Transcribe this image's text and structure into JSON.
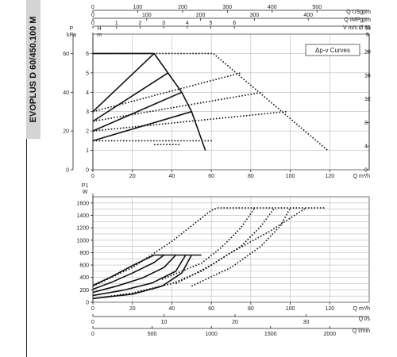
{
  "product": {
    "title": "EVOPLUS D 60/450.100 M"
  },
  "chart_data": [
    {
      "type": "line",
      "name": "head",
      "title": "",
      "legend_box": "Δp-v Curves",
      "xlabel": "Q m³/h",
      "xlim": [
        0,
        140
      ],
      "xticks": [
        0,
        20,
        40,
        60,
        80,
        100,
        120
      ],
      "left_axis": {
        "label": "H m",
        "ylim": [
          0,
          7
        ],
        "ticks": [
          0,
          1,
          2,
          3,
          4,
          5,
          6
        ]
      },
      "left_axis_kpa": {
        "label": "P kPa",
        "ticks": [
          0,
          20,
          40,
          60
        ]
      },
      "right_axis": {
        "label": "H ft",
        "ticks": [
          0,
          4,
          8,
          12,
          16,
          20
        ]
      },
      "top_axes": [
        {
          "label": "Q USgpm",
          "ticks": [
            0,
            100,
            200,
            300,
            400,
            500
          ]
        },
        {
          "label": "Q IMPgpm",
          "ticks": [
            0,
            100,
            200,
            300,
            400
          ]
        },
        {
          "label": "V m/s Ø 65",
          "ticks": [
            0,
            1,
            2,
            3,
            4,
            5,
            6
          ]
        }
      ],
      "series": [
        {
          "style": "solid",
          "x": [
            0,
            31
          ],
          "y": [
            3.0,
            6.0
          ]
        },
        {
          "style": "solid",
          "x": [
            0,
            38
          ],
          "y": [
            2.5,
            5.0
          ]
        },
        {
          "style": "solid",
          "x": [
            0,
            45
          ],
          "y": [
            2.0,
            4.0
          ]
        },
        {
          "style": "solid",
          "x": [
            0,
            50
          ],
          "y": [
            1.5,
            3.0
          ]
        },
        {
          "style": "solid",
          "x": [
            0,
            31,
            38,
            45,
            50,
            57
          ],
          "y": [
            6.0,
            6.0,
            5.0,
            4.0,
            3.0,
            1.0
          ]
        },
        {
          "style": "dotted",
          "x": [
            0,
            31,
            61,
            119
          ],
          "y": [
            6.0,
            6.0,
            6.0,
            1.0
          ]
        },
        {
          "style": "dotted",
          "x": [
            0,
            75
          ],
          "y": [
            3.0,
            5.0
          ]
        },
        {
          "style": "dotted",
          "x": [
            0,
            86
          ],
          "y": [
            2.5,
            4.0
          ]
        },
        {
          "style": "dotted",
          "x": [
            0,
            98
          ],
          "y": [
            2.0,
            3.0
          ]
        },
        {
          "style": "dotted",
          "x": [
            0,
            61
          ],
          "y": [
            1.5,
            1.5
          ]
        },
        {
          "style": "dotted",
          "x": [
            31,
            44
          ],
          "y": [
            1.3,
            1.3
          ]
        }
      ]
    },
    {
      "type": "line",
      "name": "power",
      "title": "",
      "ylabel": "P1 W",
      "ylim": [
        0,
        1700
      ],
      "yticks": [
        0,
        200,
        400,
        600,
        800,
        1000,
        1200,
        1400,
        1600
      ],
      "xlabel": "Q m³/h",
      "xlim": [
        0,
        140
      ],
      "xticks": [
        0,
        20,
        40,
        60,
        80,
        100,
        120
      ],
      "bottom_axes": [
        {
          "label": "Q l/s",
          "ticks": [
            0,
            10,
            20,
            30
          ]
        },
        {
          "label": "Q l/min",
          "ticks": [
            0,
            500,
            1000,
            1500,
            2000
          ]
        }
      ],
      "series": [
        {
          "style": "solid",
          "x": [
            0,
            10,
            20,
            31
          ],
          "y": [
            270,
            420,
            590,
            760
          ]
        },
        {
          "style": "solid",
          "x": [
            0,
            10,
            20,
            31,
            36
          ],
          "y": [
            210,
            330,
            470,
            640,
            760
          ]
        },
        {
          "style": "solid",
          "x": [
            0,
            12,
            25,
            36,
            42
          ],
          "y": [
            160,
            260,
            390,
            560,
            760
          ]
        },
        {
          "style": "solid",
          "x": [
            0,
            15,
            30,
            42,
            47
          ],
          "y": [
            110,
            190,
            310,
            500,
            760
          ]
        },
        {
          "style": "solid",
          "x": [
            0,
            20,
            35,
            45,
            50
          ],
          "y": [
            60,
            130,
            260,
            470,
            760
          ]
        },
        {
          "style": "solid",
          "x": [
            31,
            55
          ],
          "y": [
            760,
            760
          ]
        },
        {
          "style": "dotted",
          "x": [
            0,
            20,
            40,
            60,
            63,
            118
          ],
          "y": [
            260,
            560,
            980,
            1480,
            1520,
            1520
          ]
        },
        {
          "style": "dotted",
          "x": [
            35,
            55,
            65,
            75,
            82
          ],
          "y": [
            370,
            630,
            880,
            1200,
            1520
          ]
        },
        {
          "style": "dotted",
          "x": [
            42,
            60,
            75,
            85,
            92
          ],
          "y": [
            300,
            600,
            900,
            1220,
            1520
          ]
        },
        {
          "style": "dotted",
          "x": [
            50,
            70,
            85,
            95,
            100
          ],
          "y": [
            260,
            560,
            900,
            1230,
            1520
          ]
        },
        {
          "style": "dotted",
          "x": [
            0,
            20,
            40,
            55,
            70,
            90,
            108
          ],
          "y": [
            60,
            150,
            300,
            500,
            800,
            1150,
            1520
          ]
        }
      ]
    }
  ]
}
